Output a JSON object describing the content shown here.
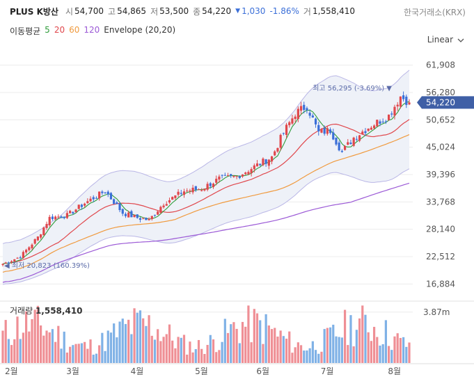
{
  "header": {
    "name": "PLUS K방산",
    "open_label": "시",
    "open": "54,700",
    "high_label": "고",
    "high": "54,865",
    "low_label": "저",
    "low": "53,500",
    "close_label": "종",
    "close": "54,220",
    "change": "1,030",
    "change_pct": "-1.86%",
    "volume_label": "거",
    "volume": "1,558,410",
    "exchange": "한국거래소(KRX)"
  },
  "indicators": {
    "label": "이동평균",
    "ma": [
      {
        "period": "5",
        "color": "#2e9c3a"
      },
      {
        "period": "20",
        "color": "#e0474c"
      },
      {
        "period": "60",
        "color": "#f09a3e"
      },
      {
        "period": "120",
        "color": "#9b59d6"
      }
    ],
    "envelope": "Envelope (20,20)"
  },
  "scale_selector": "Linear",
  "colors": {
    "up": "#e0474c",
    "down": "#3b6fd8",
    "envelope_fill": "#eef1f8",
    "envelope_line": "#b9b6e6",
    "vol_up": "#ef8f95",
    "vol_down": "#7fb1e6",
    "price_tag": "#3f5fa6"
  },
  "chart_data": {
    "type": "candlestick",
    "price_axis": {
      "ticks": [
        "61,908",
        "56,280",
        "50,652",
        "45,024",
        "39,396",
        "33,768",
        "28,140",
        "22,512",
        "16,884"
      ],
      "tick_values": [
        61908,
        56280,
        50652,
        45024,
        39396,
        33768,
        28140,
        22512,
        16884
      ],
      "ylim": [
        14500,
        65000
      ]
    },
    "x_axis": {
      "labels": [
        "2월",
        "3월",
        "4월",
        "5월",
        "6월",
        "7월",
        "8월"
      ],
      "label_day": [
        0,
        21,
        43,
        65,
        86,
        108,
        131
      ],
      "n_days": 140
    },
    "current_price": {
      "value": 54220,
      "label": "54,220"
    },
    "max_annotation": {
      "text": "최고 56,295 (-3.69%)",
      "value": 56295,
      "day": 134
    },
    "min_annotation": {
      "text": "최저 20,823 (160.39%)",
      "value": 20823,
      "day": 0
    },
    "close_series_key_points": [
      [
        0,
        21000
      ],
      [
        6,
        22500
      ],
      [
        12,
        26500
      ],
      [
        16,
        30500
      ],
      [
        22,
        31000
      ],
      [
        28,
        33500
      ],
      [
        35,
        36000
      ],
      [
        41,
        31500
      ],
      [
        46,
        30500
      ],
      [
        50,
        30000
      ],
      [
        55,
        33500
      ],
      [
        62,
        36000
      ],
      [
        68,
        36500
      ],
      [
        74,
        38500
      ],
      [
        80,
        39000
      ],
      [
        86,
        41000
      ],
      [
        92,
        43000
      ],
      [
        96,
        48000
      ],
      [
        100,
        52000
      ],
      [
        104,
        53500
      ],
      [
        108,
        48000
      ],
      [
        112,
        48500
      ],
      [
        116,
        44000
      ],
      [
        120,
        47000
      ],
      [
        126,
        49500
      ],
      [
        132,
        51500
      ],
      [
        136,
        55500
      ],
      [
        139,
        54220
      ]
    ],
    "series": [
      {
        "name": "MA5",
        "color": "#2e9c3a"
      },
      {
        "name": "MA20",
        "color": "#e0474c"
      },
      {
        "name": "MA60",
        "color": "#f09a3e"
      },
      {
        "name": "MA120",
        "color": "#9b59d6"
      },
      {
        "name": "Envelope (20,20)",
        "color": "#b9b6e6"
      }
    ],
    "volume": {
      "title": "거래량",
      "value": "1,558,410",
      "axis_tick": "3.87m",
      "axis_tick_value": 3870000,
      "ymax": 4600000
    }
  }
}
